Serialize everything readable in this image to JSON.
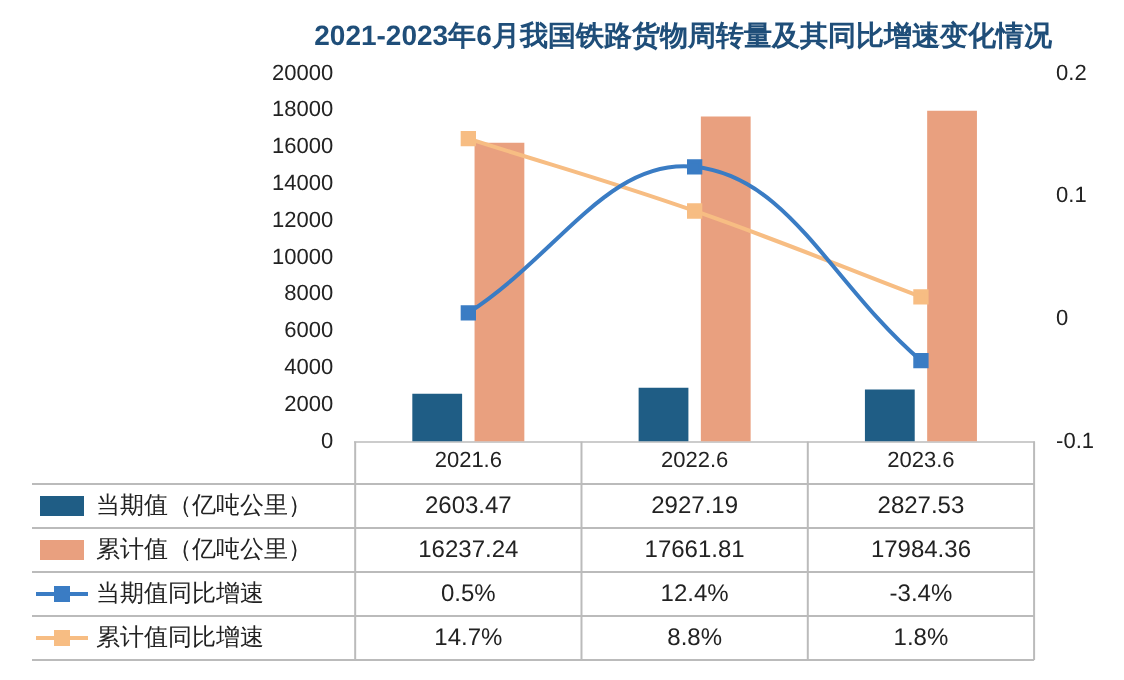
{
  "chart_data": {
    "type": "bar",
    "title": "2021-2023年6月我国铁路货物周转量及其同比增速变化情况",
    "categories": [
      "2021.6",
      "2022.6",
      "2023.6"
    ],
    "series": [
      {
        "name": "当期值（亿吨公里）",
        "color": "#1f5d85",
        "values": [
          2603.47,
          2927.19,
          2827.53
        ],
        "value_labels": [
          "2603.47",
          "2927.19",
          "2827.53"
        ]
      },
      {
        "name": "累计值（亿吨公里）",
        "color": "#e9a07f",
        "values": [
          16237.24,
          17661.81,
          17984.36
        ],
        "value_labels": [
          "16237.24",
          "17661.81",
          "17984.36"
        ]
      },
      {
        "name": "当期值同比增速",
        "type": "line",
        "axis": "y2",
        "color": "#3a7cc4",
        "values": [
          0.005,
          0.124,
          -0.034
        ],
        "value_labels": [
          "0.5%",
          "12.4%",
          "-3.4%"
        ]
      },
      {
        "name": "累计值同比增速",
        "type": "line",
        "axis": "y2",
        "color": "#f7bd83",
        "values": [
          0.147,
          0.088,
          0.018
        ],
        "value_labels": [
          "14.7%",
          "8.8%",
          "1.8%"
        ]
      }
    ],
    "ylim": [
      0,
      20000
    ],
    "yticks": [
      0,
      2000,
      4000,
      6000,
      8000,
      10000,
      12000,
      14000,
      16000,
      18000,
      20000
    ],
    "y2lim": [
      -0.1,
      0.2
    ],
    "y2ticks": [
      -0.1,
      0,
      0.1,
      0.2
    ],
    "legend": "bottom",
    "marker": "square"
  }
}
